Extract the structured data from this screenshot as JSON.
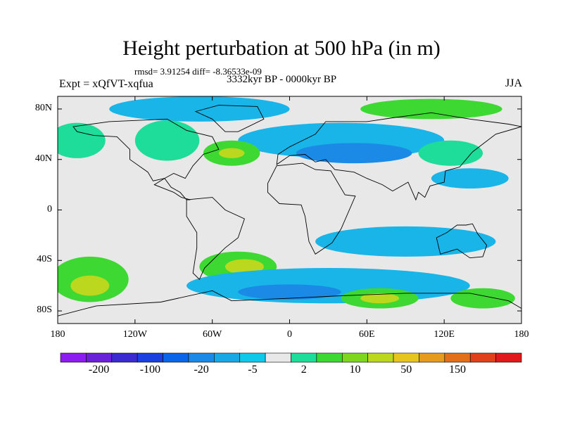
{
  "title": "Height perturbation at 500 hPa (in m)",
  "stats_line": "rmsd= 3.91254 diff= -8.36533e-09",
  "period": "3332kyr BP - 0000kyr BP",
  "experiment": "Expt = xQfVT-xqfua",
  "season": "JJA",
  "lat_axis": [
    {
      "label": "80N",
      "lat": 80
    },
    {
      "label": "40N",
      "lat": 40
    },
    {
      "label": "0",
      "lat": 0
    },
    {
      "label": "40S",
      "lat": -40
    },
    {
      "label": "80S",
      "lat": -80
    }
  ],
  "lon_axis": [
    {
      "label": "180",
      "lon": -180
    },
    {
      "label": "120W",
      "lon": -120
    },
    {
      "label": "60W",
      "lon": -60
    },
    {
      "label": "0",
      "lon": 0
    },
    {
      "label": "60E",
      "lon": 60
    },
    {
      "label": "120E",
      "lon": 120
    },
    {
      "label": "180",
      "lon": 180
    }
  ],
  "map_extent": {
    "lon_min": -180,
    "lon_max": 180,
    "lat_min": -90,
    "lat_max": 90
  },
  "colorbar": {
    "colors": [
      "#8c1cf0",
      "#6a22d8",
      "#3a2ad0",
      "#1a40e0",
      "#0a66e8",
      "#1a8ae6",
      "#19a8e6",
      "#10c8ea",
      "#e8e8e8",
      "#1edc9a",
      "#3ed832",
      "#7ed61e",
      "#bcd81e",
      "#e6c61e",
      "#e69a1e",
      "#e2701a",
      "#e0401a",
      "#e01a1a"
    ],
    "labels": [
      {
        "text": "-200",
        "index": 1
      },
      {
        "text": "-100",
        "index": 3
      },
      {
        "text": "-20",
        "index": 5
      },
      {
        "text": "-5",
        "index": 7
      },
      {
        "text": "2",
        "index": 9
      },
      {
        "text": "10",
        "index": 11
      },
      {
        "text": "50",
        "index": 13
      },
      {
        "text": "150",
        "index": 15
      }
    ]
  },
  "field_colors": {
    "background": "#e8e8e8",
    "light_blue": "#19b4e8",
    "mid_blue": "#1a8ae6",
    "deep_blue": "#0a66e8",
    "teal": "#1edc9a",
    "green": "#3ed832",
    "yellow_green": "#bcd81e"
  },
  "anomaly_regions": [
    {
      "name": "arctic-band",
      "tone": "light_blue",
      "lon": -70,
      "lat": 80,
      "rlon": 70,
      "rlat": 10
    },
    {
      "name": "north-atlantic-eurasia",
      "tone": "light_blue",
      "lon": 40,
      "lat": 55,
      "rlon": 80,
      "rlat": 14
    },
    {
      "name": "siberia-low",
      "tone": "mid_blue",
      "lon": 50,
      "lat": 45,
      "rlon": 45,
      "rlat": 8
    },
    {
      "name": "north-pacific-west",
      "tone": "teal",
      "lon": -165,
      "lat": 55,
      "rlon": 22,
      "rlat": 14
    },
    {
      "name": "north-america",
      "tone": "teal",
      "lon": -95,
      "lat": 55,
      "rlon": 25,
      "rlat": 16
    },
    {
      "name": "north-atlantic-high",
      "tone": "green",
      "lon": -45,
      "lat": 45,
      "rlon": 22,
      "rlat": 10
    },
    {
      "name": "north-atlantic-core",
      "tone": "yellow_green",
      "lon": -45,
      "lat": 45,
      "rlon": 10,
      "rlat": 4
    },
    {
      "name": "arctic-east",
      "tone": "green",
      "lon": 110,
      "lat": 80,
      "rlon": 55,
      "rlat": 8
    },
    {
      "name": "east-asia",
      "tone": "teal",
      "lon": 125,
      "lat": 45,
      "rlon": 25,
      "rlat": 10
    },
    {
      "name": "west-pacific-blue",
      "tone": "light_blue",
      "lon": 140,
      "lat": 25,
      "rlon": 30,
      "rlat": 8
    },
    {
      "name": "south-pacific-green",
      "tone": "green",
      "lon": -155,
      "lat": -55,
      "rlon": 30,
      "rlat": 18
    },
    {
      "name": "south-pacific-core",
      "tone": "yellow_green",
      "lon": -155,
      "lat": -60,
      "rlon": 15,
      "rlat": 8
    },
    {
      "name": "south-america-green",
      "tone": "green",
      "lon": -40,
      "lat": -45,
      "rlon": 30,
      "rlat": 12
    },
    {
      "name": "south-atlantic-core",
      "tone": "yellow_green",
      "lon": -35,
      "lat": -45,
      "rlon": 15,
      "rlat": 6
    },
    {
      "name": "southern-ocean-blue",
      "tone": "light_blue",
      "lon": 30,
      "lat": -60,
      "rlon": 110,
      "rlat": 14
    },
    {
      "name": "southern-ocean-deep",
      "tone": "mid_blue",
      "lon": 0,
      "lat": -65,
      "rlon": 40,
      "rlat": 6
    },
    {
      "name": "indian-ocean-blue",
      "tone": "light_blue",
      "lon": 90,
      "lat": -25,
      "rlon": 70,
      "rlat": 12
    },
    {
      "name": "southern-indian-green",
      "tone": "green",
      "lon": 70,
      "lat": -70,
      "rlon": 30,
      "rlat": 8
    },
    {
      "name": "southern-indian-core",
      "tone": "yellow_green",
      "lon": 70,
      "lat": -70,
      "rlon": 15,
      "rlat": 4
    },
    {
      "name": "south-pacific-east-green",
      "tone": "green",
      "lon": 150,
      "lat": -70,
      "rlon": 25,
      "rlat": 8
    }
  ],
  "continent_outlines": [
    {
      "name": "north-america",
      "points": [
        [
          -168,
          66
        ],
        [
          -140,
          70
        ],
        [
          -95,
          72
        ],
        [
          -80,
          63
        ],
        [
          -60,
          58
        ],
        [
          -55,
          48
        ],
        [
          -67,
          44
        ],
        [
          -75,
          35
        ],
        [
          -81,
          25
        ],
        [
          -90,
          29
        ],
        [
          -97,
          25
        ],
        [
          -106,
          23
        ],
        [
          -110,
          30
        ],
        [
          -124,
          40
        ],
        [
          -124,
          48
        ],
        [
          -134,
          58
        ],
        [
          -152,
          59
        ],
        [
          -165,
          62
        ]
      ]
    },
    {
      "name": "central-america",
      "points": [
        [
          -97,
          25
        ],
        [
          -92,
          18
        ],
        [
          -85,
          14
        ],
        [
          -80,
          8
        ],
        [
          -77,
          8
        ],
        [
          -84,
          10
        ],
        [
          -90,
          14
        ],
        [
          -95,
          16
        ],
        [
          -105,
          20
        ]
      ]
    },
    {
      "name": "greenland",
      "points": [
        [
          -73,
          78
        ],
        [
          -55,
          83
        ],
        [
          -25,
          82
        ],
        [
          -20,
          72
        ],
        [
          -40,
          62
        ],
        [
          -50,
          62
        ],
        [
          -60,
          72
        ]
      ]
    },
    {
      "name": "south-america",
      "points": [
        [
          -80,
          8
        ],
        [
          -60,
          10
        ],
        [
          -50,
          0
        ],
        [
          -35,
          -7
        ],
        [
          -40,
          -22
        ],
        [
          -50,
          -30
        ],
        [
          -58,
          -38
        ],
        [
          -66,
          -46
        ],
        [
          -70,
          -55
        ],
        [
          -75,
          -50
        ],
        [
          -72,
          -30
        ],
        [
          -72,
          -18
        ],
        [
          -80,
          -5
        ]
      ]
    },
    {
      "name": "africa",
      "points": [
        [
          -17,
          21
        ],
        [
          -10,
          35
        ],
        [
          10,
          37
        ],
        [
          20,
          32
        ],
        [
          32,
          31
        ],
        [
          43,
          12
        ],
        [
          51,
          11
        ],
        [
          40,
          -15
        ],
        [
          33,
          -26
        ],
        [
          20,
          -35
        ],
        [
          15,
          -25
        ],
        [
          12,
          -5
        ],
        [
          9,
          4
        ],
        [
          -8,
          5
        ],
        [
          -17,
          14
        ]
      ]
    },
    {
      "name": "eurasia",
      "points": [
        [
          -10,
          36
        ],
        [
          -9,
          44
        ],
        [
          0,
          50
        ],
        [
          8,
          54
        ],
        [
          12,
          56
        ],
        [
          20,
          60
        ],
        [
          28,
          70
        ],
        [
          60,
          70
        ],
        [
          80,
          73
        ],
        [
          110,
          77
        ],
        [
          140,
          72
        ],
        [
          170,
          68
        ],
        [
          180,
          66
        ],
        [
          160,
          60
        ],
        [
          142,
          46
        ],
        [
          132,
          34
        ],
        [
          121,
          31
        ],
        [
          120,
          22
        ],
        [
          109,
          19
        ],
        [
          105,
          10
        ],
        [
          100,
          14
        ],
        [
          98,
          8
        ],
        [
          92,
          22
        ],
        [
          80,
          15
        ],
        [
          72,
          20
        ],
        [
          60,
          25
        ],
        [
          50,
          30
        ],
        [
          35,
          32
        ],
        [
          28,
          40
        ],
        [
          20,
          38
        ],
        [
          12,
          44
        ],
        [
          0,
          43
        ]
      ]
    },
    {
      "name": "australia",
      "points": [
        [
          114,
          -22
        ],
        [
          122,
          -18
        ],
        [
          130,
          -12
        ],
        [
          137,
          -12
        ],
        [
          142,
          -11
        ],
        [
          146,
          -19
        ],
        [
          153,
          -28
        ],
        [
          150,
          -37
        ],
        [
          140,
          -38
        ],
        [
          130,
          -31
        ],
        [
          117,
          -35
        ]
      ]
    },
    {
      "name": "antarctica",
      "points": [
        [
          -180,
          -84
        ],
        [
          -150,
          -76
        ],
        [
          -100,
          -73
        ],
        [
          -60,
          -64
        ],
        [
          -45,
          -72
        ],
        [
          0,
          -70
        ],
        [
          40,
          -68
        ],
        [
          90,
          -66
        ],
        [
          140,
          -66
        ],
        [
          170,
          -72
        ],
        [
          180,
          -78
        ]
      ]
    }
  ]
}
